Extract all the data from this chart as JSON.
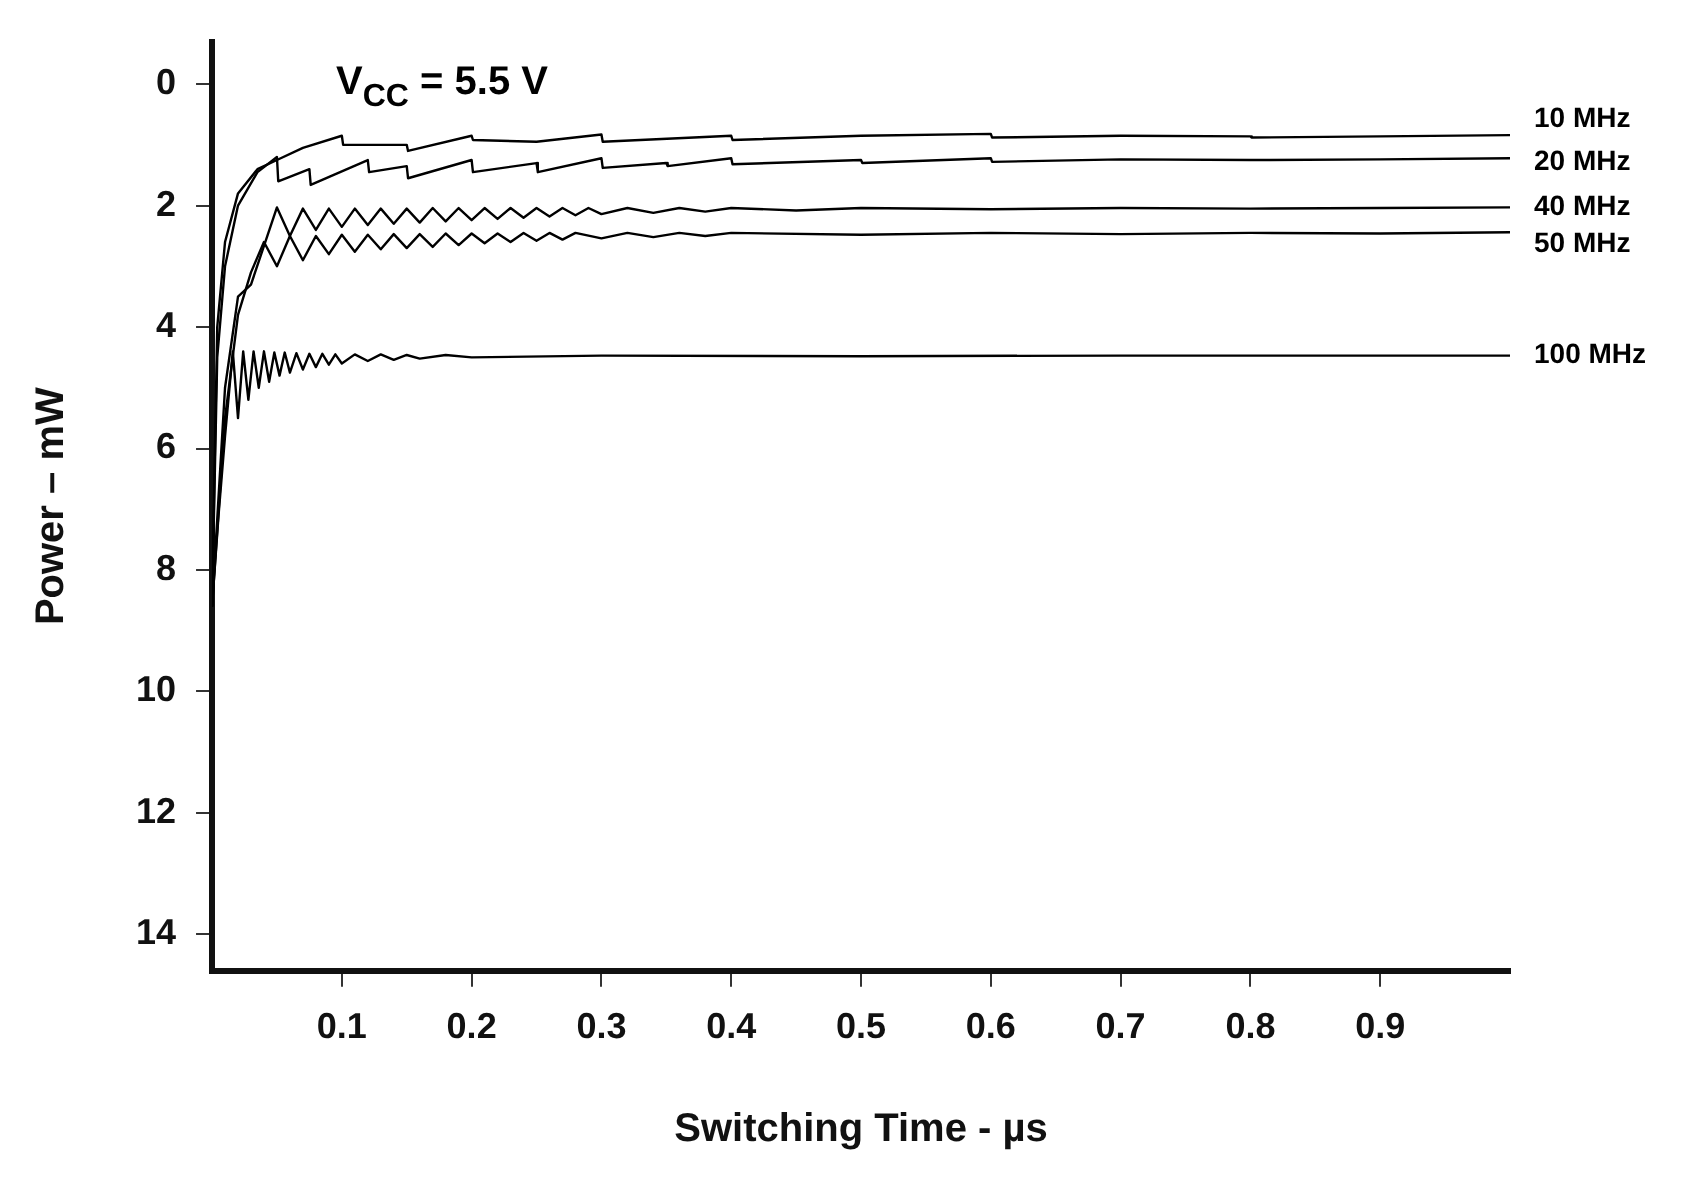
{
  "chart_data": {
    "type": "line",
    "title": "V$_{CC}$ = 5.5 V",
    "xlabel": "Switching Time - µs",
    "ylabel": "Power – mW",
    "xlim": [
      0,
      1.0
    ],
    "ylim": [
      14.6,
      -0.7
    ],
    "xticks": [
      0.1,
      0.2,
      0.3,
      0.4,
      0.5,
      0.6,
      0.7,
      0.8,
      0.9
    ],
    "yticks": [
      0,
      2,
      4,
      6,
      8,
      10,
      12,
      14
    ],
    "grid": false,
    "legend": false,
    "marker": "none",
    "line_style": "solid",
    "series": [
      {
        "name": "10 MHz",
        "color": "#000000",
        "x": [
          0,
          0.004,
          0.01,
          0.02,
          0.035,
          0.05,
          0.07,
          0.1,
          0.101,
          0.15,
          0.151,
          0.2,
          0.201,
          0.25,
          0.3,
          0.301,
          0.4,
          0.401,
          0.5,
          0.6,
          0.601,
          0.7,
          0.8,
          0.801,
          0.9,
          1.0
        ],
        "values": [
          8.6,
          4.0,
          2.6,
          1.8,
          1.4,
          1.25,
          1.05,
          0.85,
          1.0,
          1.0,
          1.1,
          0.85,
          0.92,
          0.95,
          0.83,
          0.95,
          0.85,
          0.92,
          0.85,
          0.82,
          0.88,
          0.85,
          0.86,
          0.88,
          0.86,
          0.84
        ]
      },
      {
        "name": "20 MHz",
        "color": "#000000",
        "x": [
          0,
          0.004,
          0.01,
          0.02,
          0.035,
          0.05,
          0.051,
          0.075,
          0.076,
          0.12,
          0.121,
          0.15,
          0.151,
          0.2,
          0.201,
          0.25,
          0.251,
          0.3,
          0.301,
          0.35,
          0.351,
          0.4,
          0.401,
          0.5,
          0.501,
          0.6,
          0.601,
          0.7,
          0.8,
          0.9,
          1.0
        ],
        "values": [
          8.6,
          4.5,
          3.0,
          2.0,
          1.45,
          1.2,
          1.6,
          1.4,
          1.66,
          1.25,
          1.45,
          1.35,
          1.55,
          1.25,
          1.45,
          1.3,
          1.45,
          1.22,
          1.38,
          1.3,
          1.35,
          1.22,
          1.32,
          1.25,
          1.3,
          1.22,
          1.28,
          1.24,
          1.25,
          1.24,
          1.22
        ]
      },
      {
        "name": "40 MHz",
        "color": "#000000",
        "x": [
          0,
          0.01,
          0.02,
          0.03,
          0.05,
          0.06,
          0.07,
          0.08,
          0.09,
          0.1,
          0.11,
          0.12,
          0.13,
          0.14,
          0.15,
          0.16,
          0.17,
          0.18,
          0.19,
          0.2,
          0.21,
          0.22,
          0.23,
          0.24,
          0.25,
          0.26,
          0.27,
          0.28,
          0.29,
          0.3,
          0.32,
          0.34,
          0.36,
          0.38,
          0.4,
          0.45,
          0.5,
          0.6,
          0.7,
          0.8,
          0.9,
          1.0
        ],
        "values": [
          8.6,
          5.0,
          3.5,
          3.3,
          2.03,
          2.5,
          2.05,
          2.4,
          2.05,
          2.35,
          2.05,
          2.32,
          2.05,
          2.3,
          2.05,
          2.28,
          2.04,
          2.26,
          2.04,
          2.24,
          2.04,
          2.22,
          2.04,
          2.2,
          2.04,
          2.18,
          2.04,
          2.16,
          2.04,
          2.14,
          2.04,
          2.12,
          2.04,
          2.1,
          2.04,
          2.08,
          2.04,
          2.06,
          2.04,
          2.05,
          2.04,
          2.03
        ]
      },
      {
        "name": "50 MHz",
        "color": "#000000",
        "x": [
          0,
          0.01,
          0.02,
          0.03,
          0.04,
          0.05,
          0.06,
          0.07,
          0.08,
          0.09,
          0.1,
          0.11,
          0.12,
          0.13,
          0.14,
          0.15,
          0.16,
          0.17,
          0.18,
          0.19,
          0.2,
          0.21,
          0.22,
          0.23,
          0.24,
          0.25,
          0.26,
          0.27,
          0.28,
          0.3,
          0.32,
          0.34,
          0.36,
          0.38,
          0.4,
          0.5,
          0.6,
          0.7,
          0.8,
          0.9,
          1.0
        ],
        "values": [
          8.6,
          5.5,
          3.8,
          3.1,
          2.6,
          3.0,
          2.5,
          2.9,
          2.5,
          2.8,
          2.48,
          2.76,
          2.48,
          2.72,
          2.47,
          2.7,
          2.47,
          2.68,
          2.46,
          2.65,
          2.46,
          2.62,
          2.46,
          2.6,
          2.45,
          2.58,
          2.45,
          2.56,
          2.45,
          2.54,
          2.45,
          2.52,
          2.45,
          2.5,
          2.45,
          2.48,
          2.45,
          2.47,
          2.45,
          2.46,
          2.44
        ]
      },
      {
        "name": "100 MHz",
        "color": "#000000",
        "x": [
          0,
          0.005,
          0.01,
          0.016,
          0.02,
          0.024,
          0.028,
          0.032,
          0.036,
          0.04,
          0.044,
          0.048,
          0.052,
          0.056,
          0.06,
          0.065,
          0.07,
          0.075,
          0.08,
          0.085,
          0.09,
          0.095,
          0.1,
          0.11,
          0.12,
          0.13,
          0.14,
          0.15,
          0.16,
          0.18,
          0.2,
          0.3,
          0.5,
          0.7,
          1.0
        ],
        "values": [
          8.6,
          7.1,
          5.8,
          4.4,
          5.5,
          4.4,
          5.2,
          4.4,
          5.0,
          4.4,
          4.9,
          4.42,
          4.8,
          4.42,
          4.75,
          4.43,
          4.7,
          4.44,
          4.66,
          4.44,
          4.62,
          4.45,
          4.6,
          4.45,
          4.56,
          4.45,
          4.54,
          4.46,
          4.52,
          4.46,
          4.5,
          4.47,
          4.48,
          4.47,
          4.47
        ]
      }
    ]
  }
}
